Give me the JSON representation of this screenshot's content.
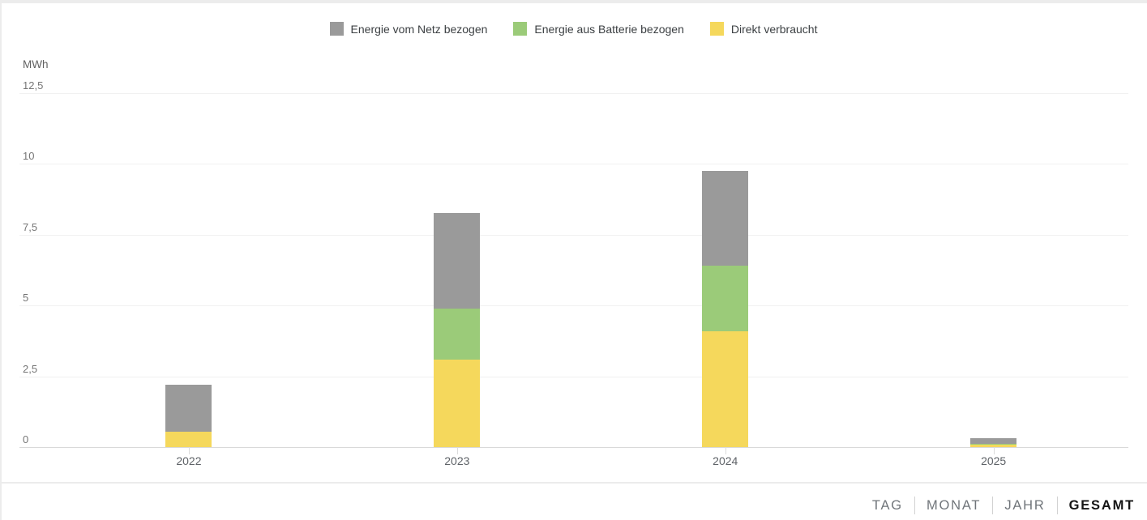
{
  "legend": [
    {
      "label": "Energie vom Netz bezogen",
      "color": "#9a9a9a"
    },
    {
      "label": "Energie aus Batterie bezogen",
      "color": "#9bcb79"
    },
    {
      "label": "Direkt verbraucht",
      "color": "#f5d85c"
    }
  ],
  "chart_data": {
    "type": "bar",
    "stacked": true,
    "title": "",
    "ylabel": "MWh",
    "xlabel": "",
    "grid": true,
    "legend_position": "top",
    "categories": [
      "2022",
      "2023",
      "2024",
      "2025"
    ],
    "series": [
      {
        "name": "Direkt verbraucht",
        "color": "#f5d85c",
        "values": [
          0.55,
          3.1,
          4.1,
          0.1
        ]
      },
      {
        "name": "Energie aus Batterie bezogen",
        "color": "#9bcb79",
        "values": [
          0,
          1.8,
          2.3,
          0.02
        ]
      },
      {
        "name": "Energie vom Netz bezogen",
        "color": "#9a9a9a",
        "values": [
          1.65,
          3.35,
          3.35,
          0.2
        ]
      }
    ],
    "totals": [
      2.2,
      8.25,
      9.75,
      0.32
    ],
    "ylim": [
      0,
      12.5
    ],
    "y_tick_values": [
      0,
      2.5,
      5,
      7.5,
      10,
      12.5
    ],
    "y_tick_labels": [
      "0",
      "2,5",
      "5",
      "7,5",
      "10",
      "12,5"
    ],
    "y_unit": "MWh"
  },
  "tabs": [
    {
      "label": "TAG",
      "active": false
    },
    {
      "label": "MONAT",
      "active": false
    },
    {
      "label": "JAHR",
      "active": false
    },
    {
      "label": "GESAMT",
      "active": true
    }
  ]
}
